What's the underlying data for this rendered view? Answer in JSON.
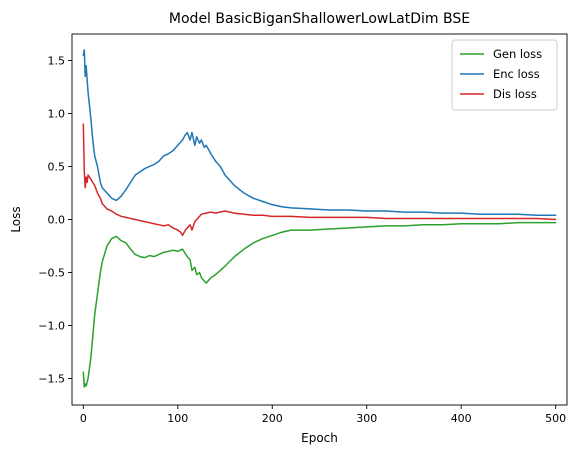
{
  "chart_data": {
    "type": "line",
    "title": "Model BasicBiganShallowerLowLatDim BSE",
    "xlabel": "Epoch",
    "ylabel": "Loss",
    "xlim": [
      -12,
      512
    ],
    "ylim": [
      -1.75,
      1.75
    ],
    "xticks": [
      0,
      100,
      200,
      300,
      400,
      500
    ],
    "yticks": [
      -1.5,
      -1.0,
      -0.5,
      0.0,
      0.5,
      1.0,
      1.5
    ],
    "xtick_labels": [
      "0",
      "100",
      "200",
      "300",
      "400",
      "500"
    ],
    "ytick_labels": [
      "−1.5",
      "−1.0",
      "−0.5",
      "0.0",
      "0.5",
      "1.0",
      "1.5"
    ],
    "grid": false,
    "legend_position": "top-right",
    "series": [
      {
        "name": "Gen loss",
        "color": "#2ca02c",
        "x": [
          0,
          1,
          2,
          3,
          5,
          8,
          10,
          12,
          15,
          18,
          20,
          25,
          30,
          35,
          40,
          45,
          50,
          55,
          60,
          65,
          70,
          75,
          80,
          85,
          90,
          95,
          100,
          105,
          110,
          113,
          115,
          118,
          120,
          123,
          125,
          128,
          130,
          133,
          135,
          140,
          145,
          150,
          160,
          170,
          180,
          190,
          200,
          210,
          220,
          240,
          260,
          280,
          300,
          320,
          340,
          360,
          380,
          400,
          420,
          440,
          460,
          480,
          500
        ],
        "values": [
          -1.44,
          -1.58,
          -1.55,
          -1.57,
          -1.5,
          -1.3,
          -1.1,
          -0.9,
          -0.7,
          -0.5,
          -0.4,
          -0.25,
          -0.18,
          -0.16,
          -0.2,
          -0.22,
          -0.28,
          -0.33,
          -0.35,
          -0.36,
          -0.34,
          -0.35,
          -0.33,
          -0.31,
          -0.3,
          -0.29,
          -0.3,
          -0.28,
          -0.35,
          -0.38,
          -0.48,
          -0.45,
          -0.52,
          -0.5,
          -0.55,
          -0.58,
          -0.6,
          -0.57,
          -0.55,
          -0.52,
          -0.48,
          -0.44,
          -0.35,
          -0.28,
          -0.22,
          -0.18,
          -0.15,
          -0.12,
          -0.1,
          -0.1,
          -0.09,
          -0.08,
          -0.07,
          -0.06,
          -0.06,
          -0.05,
          -0.05,
          -0.04,
          -0.04,
          -0.04,
          -0.03,
          -0.03,
          -0.03
        ]
      },
      {
        "name": "Enc loss",
        "color": "#1f77b4",
        "x": [
          0,
          1,
          2,
          3,
          5,
          8,
          10,
          12,
          15,
          18,
          20,
          25,
          30,
          35,
          40,
          45,
          50,
          55,
          60,
          65,
          70,
          75,
          80,
          85,
          90,
          95,
          100,
          105,
          108,
          110,
          113,
          115,
          118,
          120,
          123,
          125,
          128,
          130,
          135,
          140,
          145,
          150,
          160,
          170,
          180,
          190,
          200,
          210,
          220,
          240,
          260,
          280,
          300,
          320,
          340,
          360,
          380,
          400,
          420,
          440,
          460,
          480,
          500
        ],
        "values": [
          1.55,
          1.6,
          1.35,
          1.45,
          1.2,
          0.95,
          0.75,
          0.6,
          0.5,
          0.35,
          0.3,
          0.25,
          0.2,
          0.18,
          0.22,
          0.28,
          0.35,
          0.42,
          0.45,
          0.48,
          0.5,
          0.52,
          0.55,
          0.6,
          0.62,
          0.65,
          0.7,
          0.75,
          0.8,
          0.82,
          0.75,
          0.82,
          0.7,
          0.78,
          0.72,
          0.75,
          0.68,
          0.7,
          0.62,
          0.55,
          0.5,
          0.42,
          0.32,
          0.25,
          0.2,
          0.17,
          0.14,
          0.12,
          0.11,
          0.1,
          0.09,
          0.09,
          0.08,
          0.08,
          0.07,
          0.07,
          0.06,
          0.06,
          0.05,
          0.05,
          0.05,
          0.04,
          0.04
        ]
      },
      {
        "name": "Dis loss",
        "color": "#d62728",
        "x": [
          0,
          1,
          2,
          3,
          4,
          5,
          8,
          10,
          12,
          15,
          18,
          20,
          25,
          30,
          35,
          40,
          45,
          50,
          55,
          60,
          65,
          70,
          75,
          80,
          85,
          90,
          95,
          100,
          103,
          105,
          108,
          110,
          113,
          115,
          118,
          120,
          123,
          125,
          130,
          135,
          140,
          150,
          160,
          170,
          180,
          190,
          200,
          220,
          240,
          260,
          280,
          300,
          320,
          340,
          360,
          380,
          400,
          420,
          440,
          460,
          480,
          500
        ],
        "values": [
          0.9,
          0.45,
          0.3,
          0.4,
          0.35,
          0.42,
          0.38,
          0.35,
          0.32,
          0.25,
          0.2,
          0.15,
          0.1,
          0.08,
          0.05,
          0.03,
          0.02,
          0.01,
          0.0,
          -0.01,
          -0.02,
          -0.03,
          -0.04,
          -0.05,
          -0.06,
          -0.05,
          -0.08,
          -0.1,
          -0.12,
          -0.15,
          -0.1,
          -0.08,
          -0.05,
          -0.1,
          -0.02,
          0.0,
          0.03,
          0.05,
          0.06,
          0.07,
          0.06,
          0.08,
          0.06,
          0.05,
          0.04,
          0.04,
          0.03,
          0.03,
          0.02,
          0.02,
          0.02,
          0.02,
          0.01,
          0.01,
          0.01,
          0.01,
          0.01,
          0.01,
          0.01,
          0.01,
          0.01,
          0.0
        ]
      }
    ]
  }
}
